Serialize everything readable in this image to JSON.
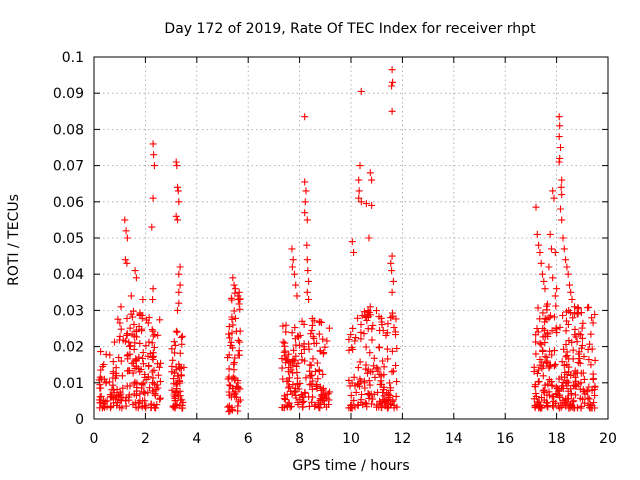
{
  "chart_data": {
    "type": "scatter",
    "title": "Day 172 of 2019, Rate Of TEC Index for receiver rhpt",
    "xlabel": "GPS time / hours",
    "ylabel": "ROTI / TECUs",
    "xlim": [
      0,
      20
    ],
    "ylim": [
      0,
      0.1
    ],
    "x_ticks": [
      0,
      2,
      4,
      6,
      8,
      10,
      12,
      14,
      16,
      18,
      20
    ],
    "y_ticks": [
      0,
      0.01,
      0.02,
      0.03,
      0.04,
      0.05,
      0.06,
      0.07,
      0.08,
      0.09,
      0.1
    ],
    "x_tick_labels": [
      "0",
      "2",
      "4",
      "6",
      "8",
      "10",
      "12",
      "14",
      "16",
      "18",
      "20"
    ],
    "y_tick_labels": [
      "0",
      "0.01",
      "0.02",
      "0.03",
      "0.04",
      "0.05",
      "0.06",
      "0.07",
      "0.08",
      "0.09",
      "0.1"
    ],
    "grid": true,
    "marker": "+",
    "marker_color": "#ff0000",
    "series": [
      {
        "name": "ROTI",
        "clusters": [
          {
            "x_range": [
              0.2,
              0.7
            ],
            "y_range": [
              0.003,
              0.02
            ],
            "count": 40
          },
          {
            "x_range": [
              0.7,
              2.6
            ],
            "y_range": [
              0.003,
              0.03
            ],
            "count": 180
          },
          {
            "x_range": [
              3.0,
              3.5
            ],
            "y_range": [
              0.003,
              0.025
            ],
            "count": 60
          },
          {
            "x_range": [
              5.2,
              5.7
            ],
            "y_range": [
              0.002,
              0.035
            ],
            "count": 70
          },
          {
            "x_range": [
              7.3,
              9.2
            ],
            "y_range": [
              0.003,
              0.028
            ],
            "count": 170
          },
          {
            "x_range": [
              9.9,
              11.8
            ],
            "y_range": [
              0.003,
              0.03
            ],
            "count": 160
          },
          {
            "x_range": [
              17.1,
              19.5
            ],
            "y_range": [
              0.003,
              0.032
            ],
            "count": 260
          }
        ],
        "points": [
          {
            "x": 1.2,
            "y": 0.055
          },
          {
            "x": 1.25,
            "y": 0.052
          },
          {
            "x": 1.3,
            "y": 0.05
          },
          {
            "x": 1.22,
            "y": 0.044
          },
          {
            "x": 1.28,
            "y": 0.043
          },
          {
            "x": 1.6,
            "y": 0.041
          },
          {
            "x": 1.65,
            "y": 0.039
          },
          {
            "x": 1.05,
            "y": 0.031
          },
          {
            "x": 1.45,
            "y": 0.034
          },
          {
            "x": 1.9,
            "y": 0.033
          },
          {
            "x": 2.3,
            "y": 0.076
          },
          {
            "x": 2.32,
            "y": 0.073
          },
          {
            "x": 2.35,
            "y": 0.07
          },
          {
            "x": 2.3,
            "y": 0.061
          },
          {
            "x": 2.25,
            "y": 0.053
          },
          {
            "x": 2.3,
            "y": 0.036
          },
          {
            "x": 2.28,
            "y": 0.033
          },
          {
            "x": 3.2,
            "y": 0.071
          },
          {
            "x": 3.22,
            "y": 0.07
          },
          {
            "x": 3.25,
            "y": 0.064
          },
          {
            "x": 3.28,
            "y": 0.063
          },
          {
            "x": 3.3,
            "y": 0.06
          },
          {
            "x": 3.2,
            "y": 0.056
          },
          {
            "x": 3.25,
            "y": 0.055
          },
          {
            "x": 3.35,
            "y": 0.042
          },
          {
            "x": 3.3,
            "y": 0.04
          },
          {
            "x": 3.35,
            "y": 0.037
          },
          {
            "x": 3.3,
            "y": 0.035
          },
          {
            "x": 3.3,
            "y": 0.032
          },
          {
            "x": 3.25,
            "y": 0.03
          },
          {
            "x": 5.4,
            "y": 0.039
          },
          {
            "x": 5.45,
            "y": 0.037
          },
          {
            "x": 5.5,
            "y": 0.036
          },
          {
            "x": 5.65,
            "y": 0.035
          },
          {
            "x": 5.6,
            "y": 0.034
          },
          {
            "x": 7.7,
            "y": 0.047
          },
          {
            "x": 7.75,
            "y": 0.044
          },
          {
            "x": 7.72,
            "y": 0.042
          },
          {
            "x": 7.8,
            "y": 0.04
          },
          {
            "x": 7.85,
            "y": 0.037
          },
          {
            "x": 7.9,
            "y": 0.034
          },
          {
            "x": 8.2,
            "y": 0.0835
          },
          {
            "x": 8.2,
            "y": 0.0655
          },
          {
            "x": 8.25,
            "y": 0.063
          },
          {
            "x": 8.22,
            "y": 0.06
          },
          {
            "x": 8.2,
            "y": 0.057
          },
          {
            "x": 8.3,
            "y": 0.055
          },
          {
            "x": 8.28,
            "y": 0.048
          },
          {
            "x": 8.3,
            "y": 0.044
          },
          {
            "x": 8.32,
            "y": 0.041
          },
          {
            "x": 8.35,
            "y": 0.038
          },
          {
            "x": 8.3,
            "y": 0.035
          },
          {
            "x": 8.35,
            "y": 0.033
          },
          {
            "x": 10.05,
            "y": 0.049
          },
          {
            "x": 10.1,
            "y": 0.046
          },
          {
            "x": 10.4,
            "y": 0.0905
          },
          {
            "x": 10.35,
            "y": 0.07
          },
          {
            "x": 10.3,
            "y": 0.066
          },
          {
            "x": 10.32,
            "y": 0.063
          },
          {
            "x": 10.3,
            "y": 0.061
          },
          {
            "x": 10.4,
            "y": 0.06
          },
          {
            "x": 10.6,
            "y": 0.0595
          },
          {
            "x": 10.75,
            "y": 0.068
          },
          {
            "x": 10.8,
            "y": 0.066
          },
          {
            "x": 10.8,
            "y": 0.059
          },
          {
            "x": 10.7,
            "y": 0.05
          },
          {
            "x": 10.75,
            "y": 0.031
          },
          {
            "x": 11.6,
            "y": 0.0965
          },
          {
            "x": 11.62,
            "y": 0.093
          },
          {
            "x": 11.58,
            "y": 0.092
          },
          {
            "x": 11.6,
            "y": 0.085
          },
          {
            "x": 11.6,
            "y": 0.045
          },
          {
            "x": 11.55,
            "y": 0.043
          },
          {
            "x": 11.58,
            "y": 0.041
          },
          {
            "x": 11.65,
            "y": 0.038
          },
          {
            "x": 11.6,
            "y": 0.035
          },
          {
            "x": 11.55,
            "y": 0.028
          },
          {
            "x": 17.2,
            "y": 0.0585
          },
          {
            "x": 17.25,
            "y": 0.051
          },
          {
            "x": 17.3,
            "y": 0.048
          },
          {
            "x": 17.35,
            "y": 0.046
          },
          {
            "x": 17.4,
            "y": 0.043
          },
          {
            "x": 17.45,
            "y": 0.04
          },
          {
            "x": 17.5,
            "y": 0.038
          },
          {
            "x": 17.55,
            "y": 0.036
          },
          {
            "x": 17.85,
            "y": 0.063
          },
          {
            "x": 17.9,
            "y": 0.061
          },
          {
            "x": 17.75,
            "y": 0.051
          },
          {
            "x": 17.8,
            "y": 0.047
          },
          {
            "x": 17.95,
            "y": 0.046
          },
          {
            "x": 17.7,
            "y": 0.042
          },
          {
            "x": 17.85,
            "y": 0.039
          },
          {
            "x": 18.1,
            "y": 0.0835
          },
          {
            "x": 18.12,
            "y": 0.081
          },
          {
            "x": 18.1,
            "y": 0.078
          },
          {
            "x": 18.15,
            "y": 0.075
          },
          {
            "x": 18.12,
            "y": 0.072
          },
          {
            "x": 18.1,
            "y": 0.071
          },
          {
            "x": 18.2,
            "y": 0.066
          },
          {
            "x": 18.18,
            "y": 0.064
          },
          {
            "x": 18.2,
            "y": 0.062
          },
          {
            "x": 18.15,
            "y": 0.058
          },
          {
            "x": 18.2,
            "y": 0.055
          },
          {
            "x": 18.25,
            "y": 0.05
          },
          {
            "x": 18.3,
            "y": 0.047
          },
          {
            "x": 18.35,
            "y": 0.044
          },
          {
            "x": 18.4,
            "y": 0.042
          },
          {
            "x": 18.45,
            "y": 0.04
          },
          {
            "x": 18.5,
            "y": 0.037
          },
          {
            "x": 18.55,
            "y": 0.035
          },
          {
            "x": 18.6,
            "y": 0.033
          },
          {
            "x": 18.7,
            "y": 0.031
          },
          {
            "x": 18.8,
            "y": 0.029
          },
          {
            "x": 18.0,
            "y": 0.036
          },
          {
            "x": 17.95,
            "y": 0.034
          }
        ]
      }
    ]
  }
}
